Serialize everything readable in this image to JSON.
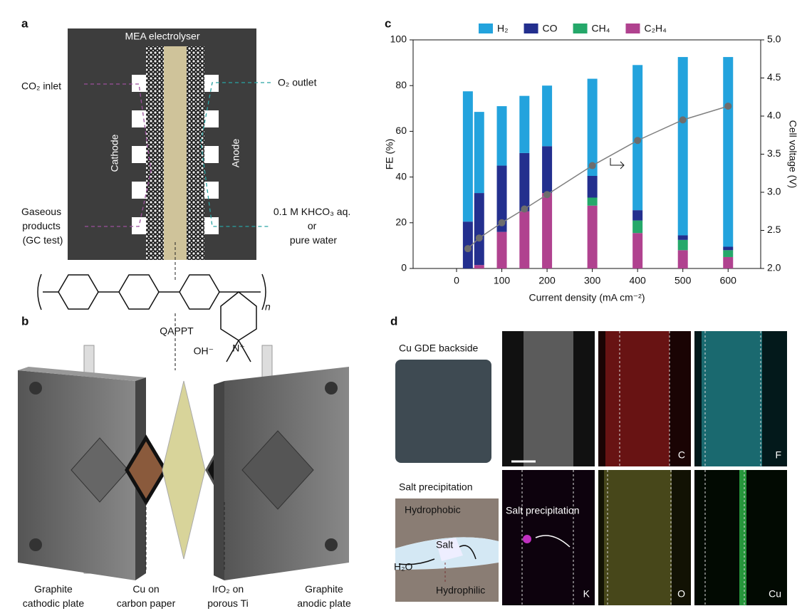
{
  "panel_labels": [
    "a",
    "b",
    "c",
    "d"
  ],
  "panel_a": {
    "title": "MEA electrolyser",
    "co2_inlet": "CO₂ inlet",
    "o2_outlet": "O₂ outlet",
    "cathode": "Cathode",
    "anode": "Anode",
    "gaseous_products": [
      "Gaseous",
      "products",
      "(GC test)"
    ],
    "electrolyte": [
      "0.1 M KHCO₃ aq.",
      "or",
      "pure water"
    ],
    "polymer_n": "n",
    "polymer_name": "QAPPT",
    "hydroxide": "OH⁻",
    "nitrogen": "N⁺"
  },
  "panel_b": {
    "labels": [
      [
        "Graphite",
        "cathodic plate"
      ],
      [
        "Cu on",
        "carbon paper"
      ],
      [
        "IrO₂ on",
        "porous Ti"
      ],
      [
        "Graphite",
        "anodic plate"
      ]
    ]
  },
  "panel_d": {
    "photo_label": "Cu GDE backside",
    "schematic_label": "Salt precipitation",
    "hydrophobic": "Hydrophobic",
    "hydrophilic": "Hydrophilic",
    "water": "H₂O",
    "salt": "Salt",
    "overlay": "Salt precipitation",
    "elements": [
      "C",
      "F",
      "K",
      "O",
      "Cu"
    ]
  },
  "chart_data": {
    "type": "stacked_bar",
    "x": [
      25,
      50,
      100,
      150,
      200,
      300,
      400,
      500,
      600
    ],
    "series": [
      {
        "name": "C₂H₄",
        "color": "#b0428f",
        "values": [
          0,
          1.5,
          16,
          25,
          33,
          27.5,
          15.5,
          8,
          5
        ]
      },
      {
        "name": "CH₄",
        "color": "#25a86a",
        "values": [
          0,
          0,
          0,
          0,
          0,
          3.5,
          5.5,
          4.5,
          3
        ]
      },
      {
        "name": "CO",
        "color": "#232f8e",
        "values": [
          20.5,
          31.5,
          29,
          25.5,
          20.5,
          9.5,
          4.5,
          2,
          1.5
        ]
      },
      {
        "name": "H₂",
        "color": "#23a3dd",
        "values": [
          57,
          35.5,
          26,
          25,
          26.5,
          42.5,
          63.5,
          78,
          83
        ]
      },
      {
        "type": "line",
        "axis": "y2",
        "color": "#808080",
        "values": [
          2.26,
          2.4,
          2.6,
          2.78,
          2.97,
          3.35,
          3.68,
          3.95,
          4.13
        ]
      }
    ],
    "legend_order": [
      3,
      2,
      1,
      0
    ],
    "legend": "top",
    "x_label": "Current density (mA cm⁻²)",
    "y_label": "FE (%)",
    "y2_label": "Cell voltage (V)",
    "xlim": [
      -96,
      672
    ],
    "xticks": [
      0,
      100,
      200,
      300,
      400,
      500,
      600
    ],
    "ylim": [
      0,
      100
    ],
    "yticks": [
      0,
      20,
      40,
      60,
      80,
      100
    ],
    "y2lim": [
      2,
      5
    ],
    "y2ticks": [
      {
        "value": 2,
        "label": "2.0"
      },
      2.5,
      {
        "value": 3,
        "label": "3.0"
      },
      3.5,
      {
        "value": 4,
        "label": "4.0"
      },
      4.5,
      {
        "value": 5,
        "label": "5.0"
      }
    ]
  }
}
